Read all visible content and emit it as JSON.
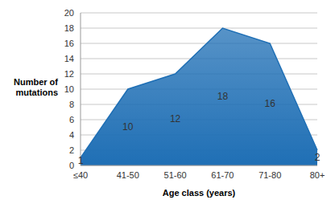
{
  "chart_data": {
    "type": "area",
    "x_label": "Age class (years)",
    "y_label": "Number of mutations",
    "categories": [
      "≤40",
      "41-50",
      "51-60",
      "61-70",
      "71-80",
      "80+"
    ],
    "values": [
      1,
      10,
      12,
      18,
      16,
      2
    ],
    "color": "#1f6fb5",
    "ylim": [
      0,
      20
    ],
    "yticks": [
      0,
      2,
      4,
      6,
      8,
      10,
      12,
      14,
      16,
      18,
      20
    ],
    "grid": true,
    "data_labels": true
  }
}
